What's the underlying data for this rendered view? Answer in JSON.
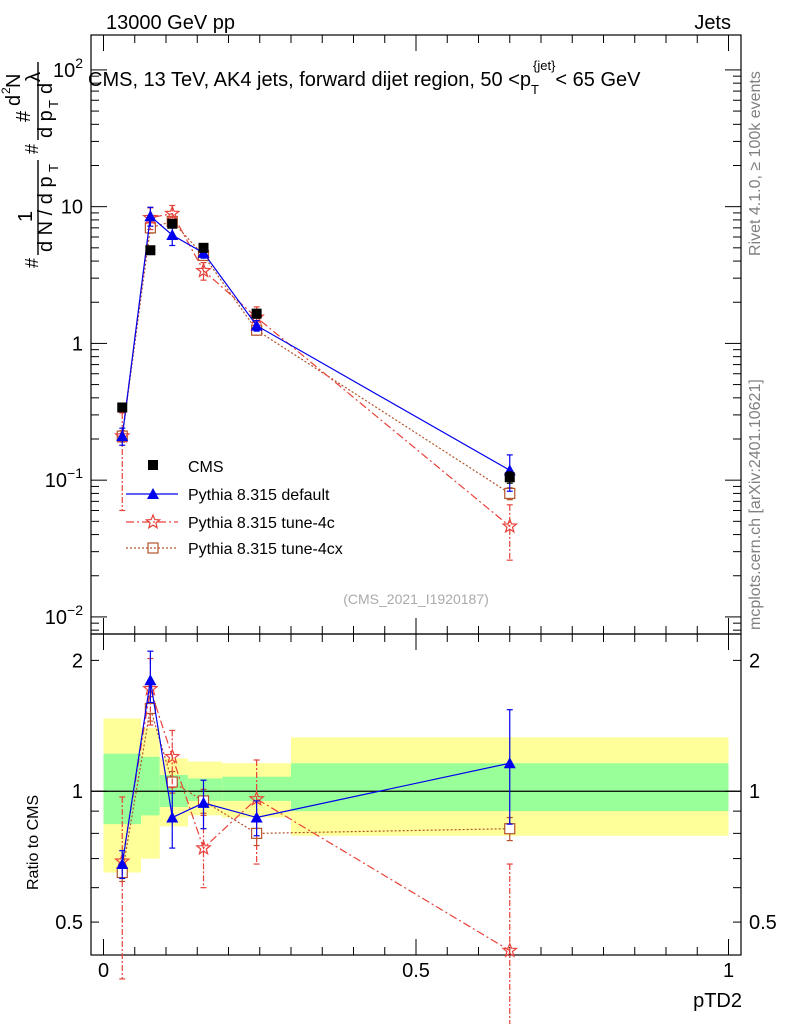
{
  "header": {
    "energy_label": "13000 GeV pp",
    "category_label": "Jets"
  },
  "side_labels": {
    "rivet": "Rivet 4.1.0, ≥ 100k events",
    "mcplots": "mcplots.cern.ch [arXiv:2401.10621]"
  },
  "colors": {
    "cms": "#000000",
    "default": "#0000ee",
    "tune4c": "#e8413a",
    "tune4cx": "#b4532a",
    "band_inner": "#99ff99",
    "band_outer": "#ffff99"
  },
  "chart_data": [
    {
      "type": "line",
      "log_y": true,
      "title": "CMS, 13 TeV, AK4 jets, forward dijet region, 50 <p_T^{jet}< 65 GeV",
      "title_parts": {
        "main": "CMS, 13 TeV, AK4 jets, forward dijet region, 50 <p",
        "sub": "T",
        "sup": "{jet}",
        "tail": "< 65 GeV"
      },
      "watermark": "(CMS_2021_I1920187)",
      "ylabel": "1/dN/dp_T d²N/dp_T dλ",
      "xlim": [
        -0.02,
        1.02
      ],
      "ylim": [
        0.0075,
        180
      ],
      "yticks": [
        {
          "value": 0.01,
          "mantissa": "10",
          "exponent": "−2"
        },
        {
          "value": 0.1,
          "mantissa": "10",
          "exponent": "−1"
        },
        {
          "value": 1,
          "label": "1"
        },
        {
          "value": 10,
          "label": "10"
        },
        {
          "value": 100,
          "mantissa": "10",
          "exponent": "2"
        }
      ],
      "legend": {
        "position": "lower-left",
        "entries": [
          "CMS",
          "Pythia 8.315 default",
          "Pythia 8.315 tune-4c",
          "Pythia 8.315 tune-4cx"
        ]
      },
      "x": [
        0.03,
        0.075,
        0.11,
        0.16,
        0.245,
        0.65
      ],
      "series": [
        {
          "name": "CMS",
          "values": [
            0.34,
            4.8,
            7.5,
            5.0,
            1.65,
            0.105
          ],
          "err_lo": [
            0.02,
            0.3,
            0.4,
            0.3,
            0.12,
            0.01
          ],
          "err_hi": [
            0.02,
            0.3,
            0.4,
            0.3,
            0.12,
            0.01
          ]
        },
        {
          "name": "Pythia 8.315 default",
          "values": [
            0.21,
            8.5,
            6.2,
            4.6,
            1.35,
            0.118
          ],
          "err_lo": [
            0.03,
            1.3,
            1.0,
            0.4,
            0.12,
            0.035
          ],
          "err_hi": [
            0.03,
            1.4,
            0.9,
            0.4,
            0.12,
            0.035
          ]
        },
        {
          "name": "Pythia 8.315 tune-4c",
          "values": [
            0.21,
            8.3,
            8.9,
            3.4,
            1.55,
            0.046
          ],
          "err_lo": [
            0.15,
            1.5,
            1.2,
            0.5,
            0.3,
            0.02
          ],
          "err_hi": [
            0.1,
            1.5,
            1.3,
            0.5,
            0.3,
            0.02
          ]
        },
        {
          "name": "Pythia 8.315 tune-4cx",
          "values": [
            0.21,
            7.0,
            7.8,
            4.4,
            1.25,
            0.08
          ],
          "err_lo": [
            0.02,
            0.6,
            0.5,
            0.3,
            0.1,
            0.008
          ],
          "err_hi": [
            0.02,
            0.6,
            0.5,
            0.3,
            0.1,
            0.008
          ]
        }
      ]
    },
    {
      "type": "line",
      "log_y": true,
      "ylabel": "Ratio to CMS",
      "xlabel": "pTD2",
      "xlim": [
        -0.02,
        1.02
      ],
      "ylim": [
        0.42,
        2.3
      ],
      "yticks": [
        {
          "value": 0.5,
          "label": "0.5"
        },
        {
          "value": 1,
          "label": "1"
        },
        {
          "value": 2,
          "label": "2"
        }
      ],
      "xticks": [
        {
          "value": 0,
          "label": "0"
        },
        {
          "value": 0.5,
          "label": "0.5"
        },
        {
          "value": 1,
          "label": "1"
        }
      ],
      "bands": [
        {
          "x0": 0.0,
          "x1": 0.06,
          "inner": [
            0.84,
            1.22
          ],
          "outer": [
            0.65,
            1.47
          ]
        },
        {
          "x0": 0.06,
          "x1": 0.09,
          "inner": [
            0.88,
            1.2
          ],
          "outer": [
            0.7,
            1.4
          ]
        },
        {
          "x0": 0.09,
          "x1": 0.135,
          "inner": [
            0.92,
            1.09
          ],
          "outer": [
            0.83,
            1.19
          ]
        },
        {
          "x0": 0.135,
          "x1": 0.19,
          "inner": [
            0.95,
            1.07
          ],
          "outer": [
            0.88,
            1.17
          ]
        },
        {
          "x0": 0.19,
          "x1": 0.3,
          "inner": [
            0.95,
            1.08
          ],
          "outer": [
            0.87,
            1.16
          ]
        },
        {
          "x0": 0.3,
          "x1": 1.0,
          "inner": [
            0.9,
            1.16
          ],
          "outer": [
            0.79,
            1.33
          ]
        }
      ],
      "x": [
        0.03,
        0.075,
        0.11,
        0.16,
        0.245,
        0.65
      ],
      "series": [
        {
          "name": "Pythia 8.315 default",
          "values": [
            0.68,
            1.8,
            0.87,
            0.94,
            0.87,
            1.16
          ],
          "err_lo": [
            0.05,
            0.2,
            0.13,
            0.12,
            0.08,
            0.32
          ],
          "err_hi": [
            0.05,
            0.3,
            0.13,
            0.12,
            0.08,
            0.38
          ]
        },
        {
          "name": "Pythia 8.315 tune-4c",
          "values": [
            0.69,
            1.72,
            1.2,
            0.74,
            0.96,
            0.43
          ],
          "err_lo": [
            0.32,
            0.3,
            0.18,
            0.14,
            0.28,
            0.17
          ],
          "err_hi": [
            0.28,
            0.3,
            0.18,
            0.14,
            0.22,
            0.25
          ]
        },
        {
          "name": "Pythia 8.315 tune-4cx",
          "values": [
            0.65,
            1.55,
            1.05,
            0.95,
            0.8,
            0.82
          ],
          "err_lo": [
            0.03,
            0.1,
            0.06,
            0.06,
            0.05,
            0.05
          ],
          "err_hi": [
            0.03,
            0.1,
            0.06,
            0.06,
            0.05,
            0.05
          ]
        }
      ]
    }
  ]
}
